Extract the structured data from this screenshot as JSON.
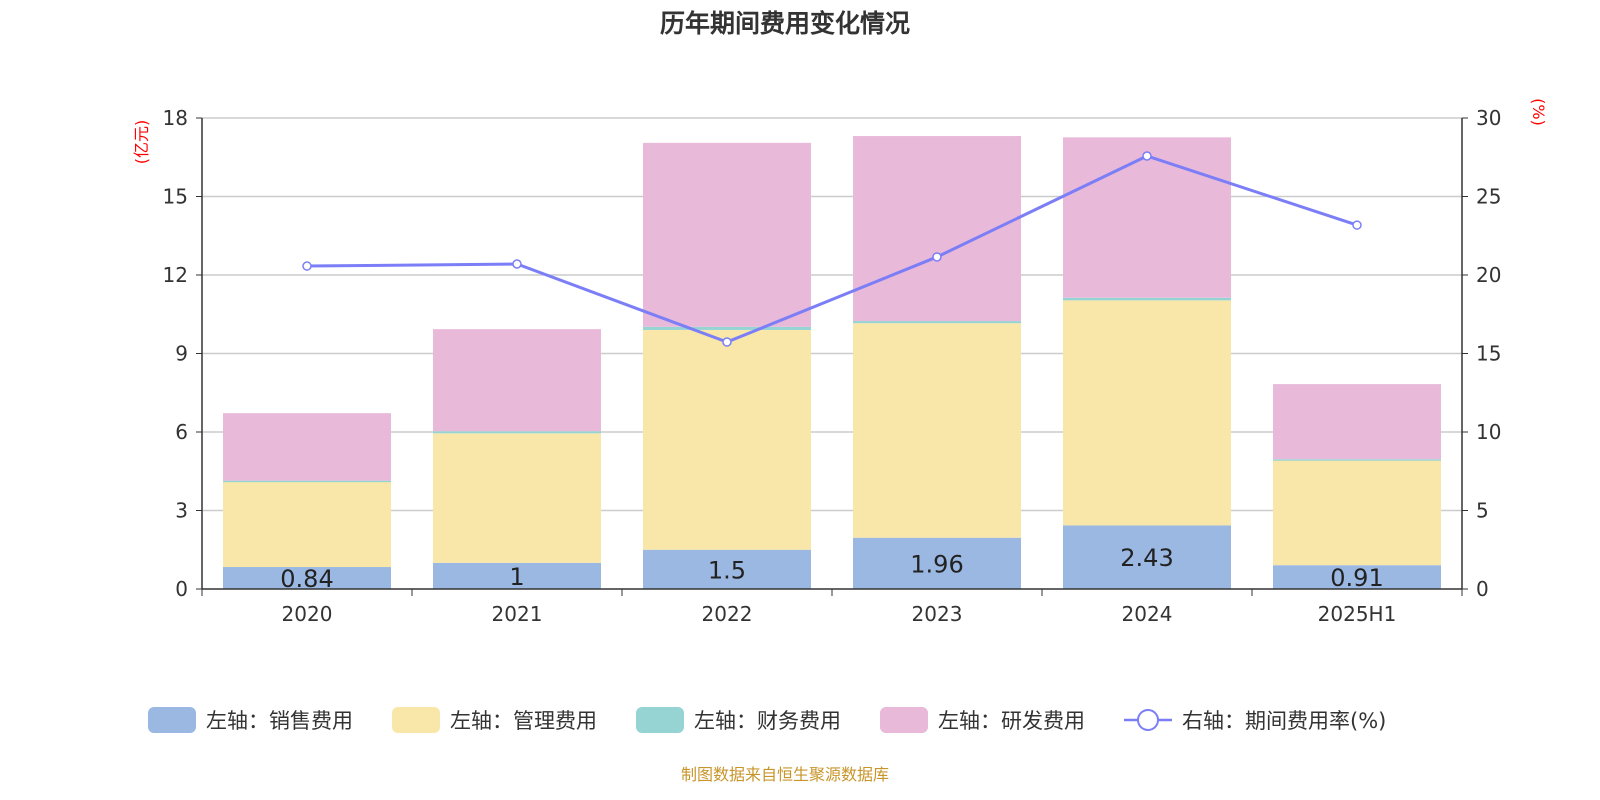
{
  "chart_data": {
    "type": "bar",
    "title": "历年期间费用变化情况",
    "left_axis_unit": "(亿元)",
    "right_axis_unit": "(%)",
    "categories": [
      "2020",
      "2021",
      "2022",
      "2023",
      "2024",
      "2025H1"
    ],
    "ylim_left": [
      0,
      18
    ],
    "yticks_left": [
      0,
      3,
      6,
      9,
      12,
      15,
      18
    ],
    "ylim_right": [
      0,
      30
    ],
    "yticks_right": [
      0,
      5,
      10,
      15,
      20,
      25,
      30
    ],
    "grid": true,
    "legend_placement": "bottom",
    "series": [
      {
        "name": "左轴：销售费用",
        "type": "bar",
        "stack": true,
        "color": "#9bb8e3",
        "values": [
          0.84,
          1,
          1.5,
          1.96,
          2.43,
          0.91
        ],
        "labels_shown": true
      },
      {
        "name": "左轴：管理费用",
        "type": "bar",
        "stack": true,
        "color": "#f8e7a9",
        "values": [
          3.25,
          4.95,
          8.4,
          8.2,
          8.6,
          4.0
        ]
      },
      {
        "name": "左轴：财务费用",
        "type": "bar",
        "stack": true,
        "color": "#96d4d4",
        "values": [
          0.05,
          0.08,
          0.12,
          0.08,
          0.1,
          0.05
        ]
      },
      {
        "name": "左轴：研发费用",
        "type": "bar",
        "stack": true,
        "color": "#e8b9d9",
        "values": [
          2.58,
          3.9,
          7.03,
          7.07,
          6.13,
          2.87
        ]
      },
      {
        "name": "右轴：期间费用率(%)",
        "type": "line",
        "axis": "right",
        "color": "#7b7ef6",
        "values": [
          20.57,
          20.7,
          15.73,
          21.15,
          27.58,
          23.18
        ]
      }
    ]
  },
  "footer": "制图数据来自恒生聚源数据库"
}
